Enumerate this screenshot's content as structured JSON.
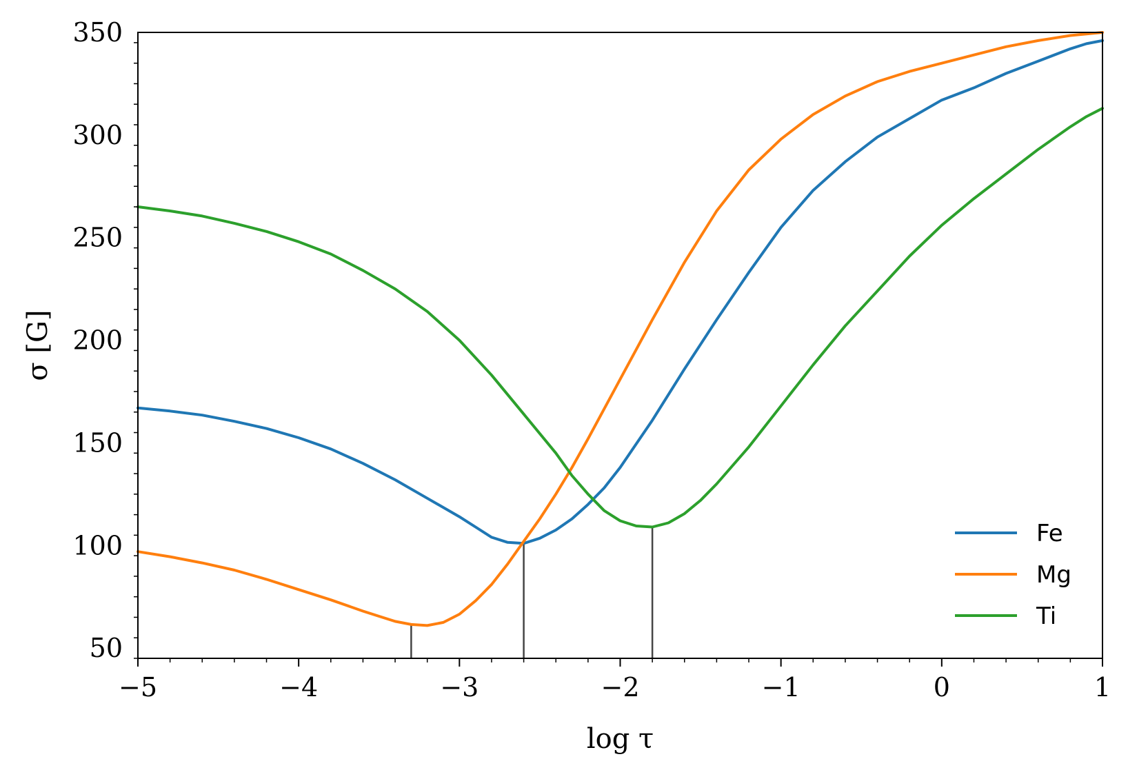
{
  "chart_data": {
    "type": "line",
    "title": "",
    "xlabel": "log τ",
    "ylabel": "σ [G]",
    "xlim": [
      -5,
      1
    ],
    "ylim": [
      45,
      350
    ],
    "x_ticks": [
      -5,
      -4,
      -3,
      -2,
      -1,
      0,
      1
    ],
    "x_tick_labels": [
      "−5",
      "−4",
      "−3",
      "−2",
      "−1",
      "0",
      "1"
    ],
    "y_ticks": [
      50,
      100,
      150,
      200,
      250,
      300,
      350
    ],
    "y_tick_labels": [
      "50",
      "100",
      "150",
      "200",
      "250",
      "300",
      "350"
    ],
    "grid": false,
    "legend_position": "lower-right",
    "series": [
      {
        "name": "Fe",
        "color": "#1f77b4",
        "x": [
          -5.0,
          -4.8,
          -4.6,
          -4.4,
          -4.2,
          -4.0,
          -3.8,
          -3.6,
          -3.4,
          -3.2,
          -3.0,
          -2.9,
          -2.8,
          -2.7,
          -2.6,
          -2.5,
          -2.4,
          -2.3,
          -2.2,
          -2.1,
          -2.0,
          -1.8,
          -1.6,
          -1.4,
          -1.2,
          -1.0,
          -0.8,
          -0.6,
          -0.4,
          -0.2,
          0.0,
          0.2,
          0.4,
          0.6,
          0.8,
          0.9,
          1.0
        ],
        "y": [
          167,
          165.5,
          163.5,
          160.5,
          157,
          152.5,
          147,
          140,
          132,
          123,
          114,
          109,
          104,
          101.5,
          101,
          103.5,
          107.5,
          113,
          120,
          128,
          138,
          161,
          186,
          210,
          233,
          255,
          273,
          287,
          299,
          308,
          317,
          323,
          330,
          336,
          342,
          344.5,
          346
        ]
      },
      {
        "name": "Mg",
        "color": "#ff7f0e",
        "x": [
          -5.0,
          -4.8,
          -4.6,
          -4.4,
          -4.2,
          -4.0,
          -3.8,
          -3.6,
          -3.5,
          -3.4,
          -3.3,
          -3.2,
          -3.1,
          -3.0,
          -2.9,
          -2.8,
          -2.7,
          -2.6,
          -2.5,
          -2.4,
          -2.3,
          -2.2,
          -2.0,
          -1.8,
          -1.6,
          -1.4,
          -1.2,
          -1.0,
          -0.8,
          -0.6,
          -0.4,
          -0.2,
          0.0,
          0.2,
          0.4,
          0.6,
          0.8,
          1.0
        ],
        "y": [
          97,
          94.5,
          91.5,
          88,
          83.5,
          78.5,
          73.5,
          68,
          65.5,
          63,
          61.5,
          61,
          62.5,
          66.5,
          73,
          81,
          91,
          102,
          113,
          125,
          138,
          152,
          181,
          210,
          238,
          263,
          283,
          298,
          310,
          319,
          326,
          331,
          335,
          339,
          343,
          346,
          348.5,
          350
        ]
      },
      {
        "name": "Ti",
        "color": "#2ca02c",
        "x": [
          -5.0,
          -4.8,
          -4.6,
          -4.4,
          -4.2,
          -4.0,
          -3.8,
          -3.6,
          -3.4,
          -3.2,
          -3.0,
          -2.8,
          -2.6,
          -2.4,
          -2.3,
          -2.2,
          -2.1,
          -2.0,
          -1.9,
          -1.8,
          -1.7,
          -1.6,
          -1.5,
          -1.4,
          -1.2,
          -1.0,
          -0.8,
          -0.6,
          -0.4,
          -0.2,
          0.0,
          0.2,
          0.4,
          0.6,
          0.8,
          0.9,
          1.0
        ],
        "y": [
          265,
          263,
          260.5,
          257,
          253,
          248,
          242,
          234,
          225,
          214,
          200,
          183,
          164,
          145,
          134,
          125,
          117,
          112,
          109.5,
          109,
          111,
          115.5,
          122,
          130,
          148,
          168,
          188,
          207,
          224,
          241,
          256,
          269,
          281,
          293,
          304,
          309,
          313
        ]
      }
    ],
    "vertical_markers": [
      {
        "x": -3.3,
        "y_top": 61.5,
        "color": "#444444"
      },
      {
        "x": -2.6,
        "y_top": 101,
        "color": "#444444"
      },
      {
        "x": -1.8,
        "y_top": 109,
        "color": "#444444"
      }
    ]
  }
}
